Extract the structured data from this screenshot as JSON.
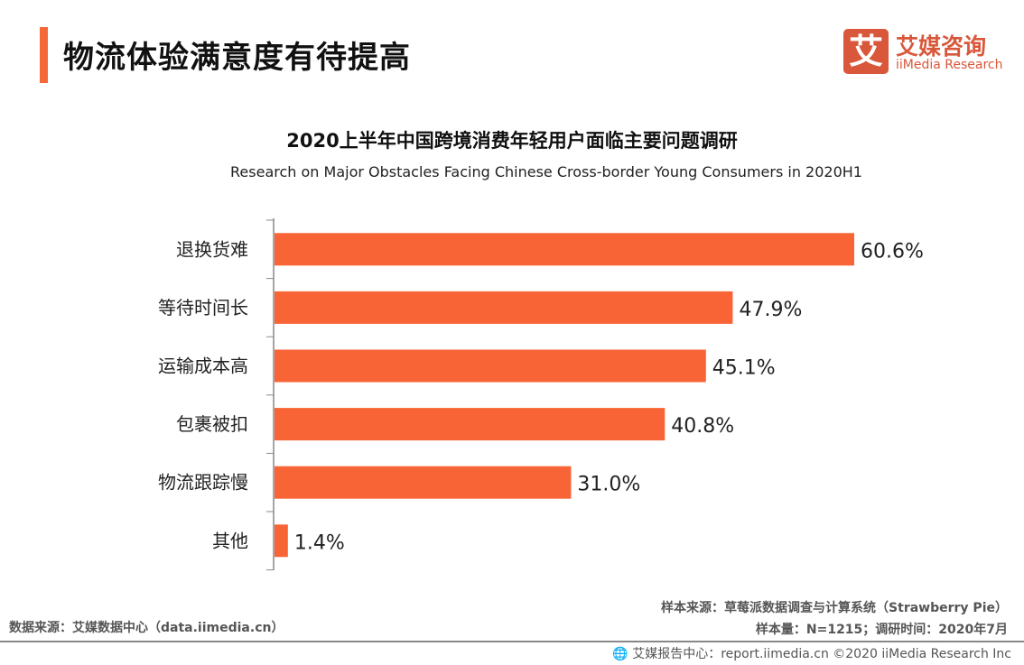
{
  "header": {
    "title": "物流体验满意度有待提高",
    "accent_color": "#f5683a"
  },
  "logo": {
    "glyph": "艾",
    "cn": "艾媒咨询",
    "en": "iiMedia Research",
    "color": "#d9573a"
  },
  "chart_data": {
    "type": "bar",
    "orientation": "horizontal",
    "title": "2020上半年中国跨境消费年轻用户面临主要问题调研",
    "subtitle": "Research on Major Obstacles Facing Chinese Cross-border Young Consumers in 2020H1",
    "categories": [
      "退换货难",
      "等待时间长",
      "运输成本高",
      "包裹被扣",
      "物流跟踪慢",
      "其他"
    ],
    "values": [
      60.6,
      47.9,
      45.1,
      40.8,
      31.0,
      1.4
    ],
    "labels": [
      "60.6%",
      "47.9%",
      "45.1%",
      "40.8%",
      "31.0%",
      "1.4%"
    ],
    "unit": "%",
    "xlim": [
      0,
      60.6
    ],
    "bar_color": "#f96436",
    "grid": false
  },
  "footer": {
    "source_right_1": "样本来源：草莓派数据调查与计算系统（Strawberry Pie）",
    "source_right_2": "样本量：N=1215；调研时间：2020年7月",
    "source_left": "数据来源：艾媒数据中心（data.iimedia.cn）",
    "bottom": "艾媒报告中心：report.iimedia.cn   ©2020  iiMedia Research  Inc",
    "bottom_icon": "globe-cursor-icon"
  }
}
